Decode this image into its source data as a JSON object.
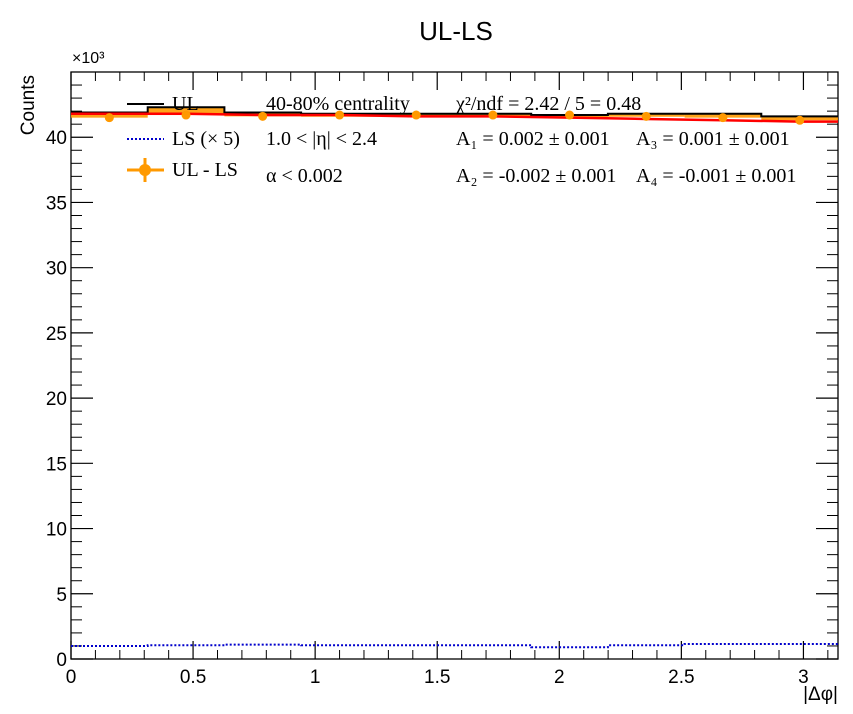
{
  "chart_data": {
    "type": "line",
    "title": "UL-LS",
    "xlabel": "|Δφ|",
    "ylabel": "Counts",
    "y_multiplier": "×10³",
    "xlim": [
      0,
      3.1416
    ],
    "ylim": [
      0,
      45000
    ],
    "x_ticks": [
      0,
      0.5,
      1,
      1.5,
      2,
      2.5,
      3
    ],
    "x_tick_labels": [
      "0",
      "0.5",
      "1",
      "1.5",
      "2",
      "2.5",
      "3"
    ],
    "y_ticks": [
      0,
      5000,
      10000,
      15000,
      20000,
      25000,
      30000,
      35000,
      40000
    ],
    "y_tick_labels": [
      "0",
      "5",
      "10",
      "15",
      "20",
      "25",
      "30",
      "35",
      "40"
    ],
    "bin_edges": [
      0,
      0.3142,
      0.6283,
      0.9425,
      1.2566,
      1.5708,
      1.885,
      2.1991,
      2.5133,
      2.8274,
      3.1416
    ],
    "series": [
      {
        "name": "UL",
        "style": "step",
        "color": "#000000",
        "values": [
          41900,
          42300,
          41900,
          41800,
          41800,
          41800,
          41700,
          41800,
          41800,
          41600
        ]
      },
      {
        "name": "LS (× 5)",
        "style": "dotted-step",
        "color": "#0000cc",
        "values": [
          1000,
          1050,
          1100,
          1050,
          1050,
          1050,
          900,
          1050,
          1150,
          1150
        ]
      },
      {
        "name": "UL - LS",
        "style": "points-with-band",
        "color": "#ff9900",
        "x": [
          0.157,
          0.471,
          0.785,
          1.1,
          1.414,
          1.728,
          2.042,
          2.356,
          2.67,
          2.985
        ],
        "values": [
          41500,
          41700,
          41600,
          41700,
          41700,
          41700,
          41700,
          41600,
          41500,
          41300
        ]
      },
      {
        "name": "fit",
        "style": "curve",
        "color": "#ff0000",
        "values": [
          41800,
          41800,
          41700,
          41700,
          41600,
          41600,
          41500,
          41400,
          41300,
          41200
        ]
      }
    ],
    "legend": {
      "placement": "top-left",
      "entries": [
        "UL",
        "LS (× 5)",
        "UL - LS"
      ]
    },
    "annotations": {
      "centrality": "40-80% centrality",
      "eta_cut": "1.0 < |η| < 2.4",
      "alpha_cut": "α < 0.002",
      "chi2": "χ²/ndf = 2.42 / 5 = 0.48",
      "a1": "A₁ = 0.002 ± 0.001",
      "a3": "A₃ = 0.001 ± 0.001",
      "a2": "A₂ = -0.002 ± 0.001",
      "a4": "A₄ = -0.001 ± 0.001"
    },
    "grid": false
  }
}
